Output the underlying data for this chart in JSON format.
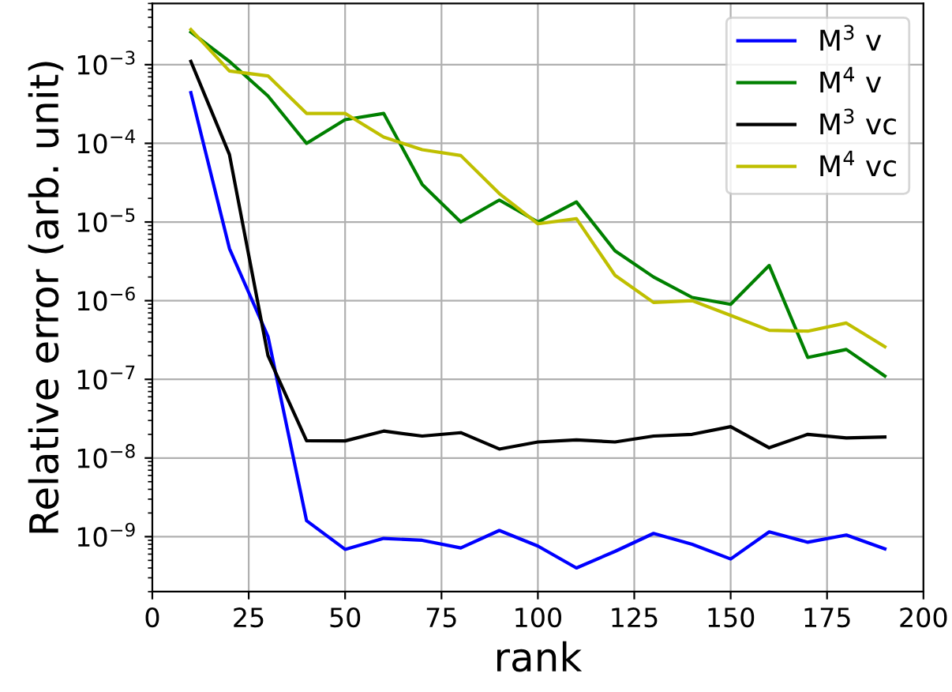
{
  "chart_data": {
    "type": "line",
    "xlabel": "rank",
    "ylabel": "Relative error (arb. unit)",
    "log": "y",
    "grid": true,
    "legend": "top right",
    "marker": "none",
    "line_style": "solid",
    "x": [
      10,
      20,
      30,
      40,
      50,
      60,
      70,
      80,
      90,
      100,
      110,
      120,
      130,
      140,
      150,
      160,
      170,
      180,
      190
    ],
    "xlim": [
      0,
      200
    ],
    "xticks": [
      0,
      25,
      50,
      75,
      100,
      125,
      150,
      175,
      200
    ],
    "ylim": [
      2e-10,
      0.006
    ],
    "yticks": [
      {
        "value": 1e-09,
        "label": "10$^{−9}$"
      },
      {
        "value": 1e-08,
        "label": "10$^{−8}$"
      },
      {
        "value": 1e-07,
        "label": "10$^{−7}$"
      },
      {
        "value": 1e-06,
        "label": "10$^{−6}$"
      },
      {
        "value": 1e-05,
        "label": "10$^{−5}$"
      },
      {
        "value": 0.0001,
        "label": "10$^{−4}$"
      },
      {
        "value": 0.001,
        "label": "10$^{−3}$"
      }
    ],
    "series": [
      {
        "name": "M$^{3}$ v",
        "color": "#0000ff",
        "values": [
          0.00044,
          4.6e-06,
          3.5e-07,
          1.6e-09,
          6.9e-10,
          9.5e-10,
          9e-10,
          7.2e-10,
          1.2e-09,
          7.6e-10,
          4e-10,
          6.5e-10,
          1.1e-09,
          8e-10,
          5.2e-10,
          1.15e-09,
          8.5e-10,
          1.05e-09,
          7e-10
        ]
      },
      {
        "name": "M$^{4}$ v",
        "color": "#008000",
        "values": [
          0.0026,
          0.0011,
          0.0004,
          0.0001,
          0.0002,
          0.00024,
          3e-05,
          1e-05,
          1.9e-05,
          1e-05,
          1.8e-05,
          4.3e-06,
          2e-06,
          1.1e-06,
          9e-07,
          2.8e-06,
          1.9e-07,
          2.4e-07,
          1.1e-07
        ]
      },
      {
        "name": "M$^{3}$ vc",
        "color": "#000000",
        "values": [
          0.0011,
          7.2e-05,
          2e-07,
          1.66e-08,
          1.65e-08,
          2.2e-08,
          1.9e-08,
          2.1e-08,
          1.3e-08,
          1.6e-08,
          1.7e-08,
          1.6e-08,
          1.9e-08,
          2e-08,
          2.5e-08,
          1.35e-08,
          2e-08,
          1.8e-08,
          1.85e-08
        ]
      },
      {
        "name": "M$^{4}$ vc",
        "color": "#bfbf00",
        "values": [
          0.0028,
          0.00083,
          0.00072,
          0.00024,
          0.00024,
          0.00012,
          8.3e-05,
          7e-05,
          2.3e-05,
          9.5e-06,
          1.1e-05,
          2.1e-06,
          9.5e-07,
          1e-06,
          6.5e-07,
          4.2e-07,
          4.1e-07,
          5.2e-07,
          2.6e-07
        ]
      }
    ]
  }
}
